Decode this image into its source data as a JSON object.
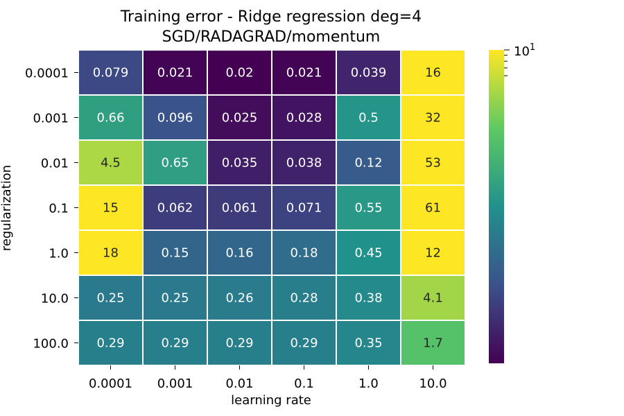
{
  "chart_data": {
    "type": "heatmap",
    "title": "Training error - Ridge regression deg=4",
    "subtitle": "SGD/RADAGRAD/momentum",
    "xlabel": "learning rate",
    "ylabel": "regularization",
    "x_categories": [
      "0.0001",
      "0.001",
      "0.01",
      "0.1",
      "1.0",
      "10.0"
    ],
    "y_categories": [
      "0.0001",
      "0.001",
      "0.01",
      "0.1",
      "1.0",
      "10.0",
      "100.0"
    ],
    "values": [
      [
        "0.079",
        "0.021",
        "0.02",
        "0.021",
        "0.039",
        "16"
      ],
      [
        "0.66",
        "0.096",
        "0.025",
        "0.028",
        "0.5",
        "32"
      ],
      [
        "4.5",
        "0.65",
        "0.035",
        "0.038",
        "0.12",
        "53"
      ],
      [
        "15",
        "0.062",
        "0.061",
        "0.071",
        "0.55",
        "61"
      ],
      [
        "18",
        "0.15",
        "0.16",
        "0.18",
        "0.45",
        "12"
      ],
      [
        "0.25",
        "0.25",
        "0.26",
        "0.28",
        "0.38",
        "4.1"
      ],
      [
        "0.29",
        "0.29",
        "0.29",
        "0.29",
        "0.35",
        "1.7"
      ]
    ],
    "colorbar": {
      "scale": "log",
      "range": [
        0.02,
        10
      ],
      "colormap": "viridis",
      "tick_label": "10",
      "tick_label_exponent": "1",
      "tick_value": 10,
      "minor_tick_values": [
        6,
        7,
        8,
        9
      ],
      "colors": [
        "#440154",
        "#3b528b",
        "#21918c",
        "#5ec962",
        "#fde725"
      ]
    },
    "grid": "white cell borders",
    "annotation_colors": {
      "dark_cells": "#ffffff",
      "light_cells": "#262626"
    }
  }
}
